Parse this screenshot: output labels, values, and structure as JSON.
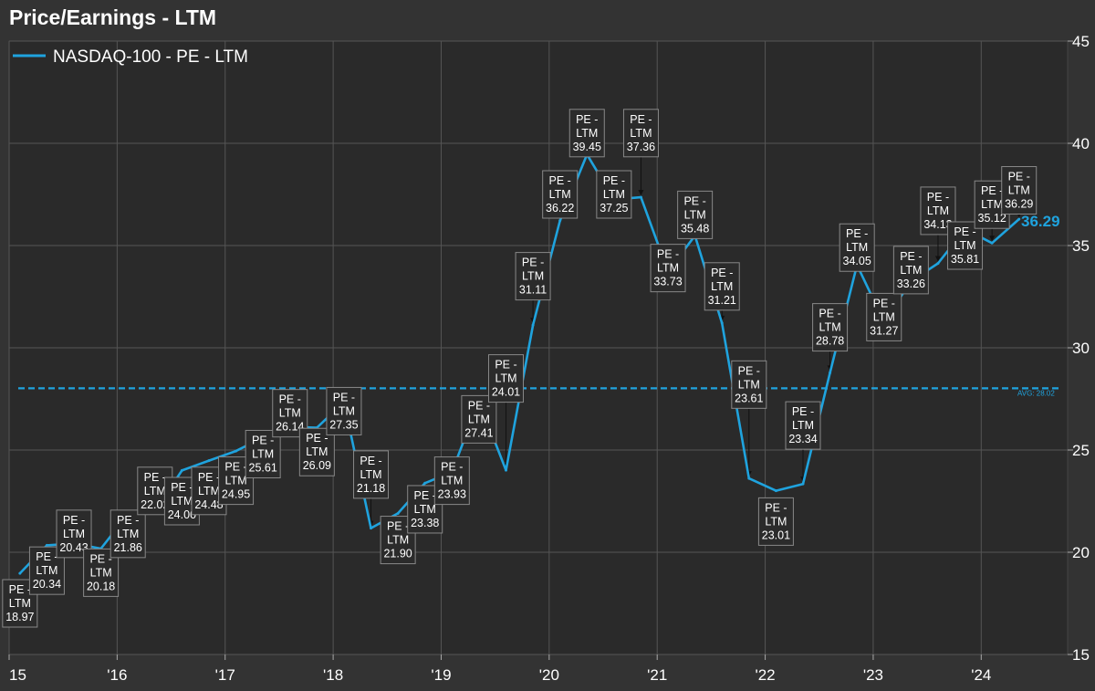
{
  "title": "Price/Earnings - LTM",
  "colors": {
    "background": "#333333",
    "plot": "#2a2a2a",
    "series": "#1fa3de",
    "grid": "#555555"
  },
  "chart_data": {
    "type": "line",
    "title": "Price/Earnings - LTM",
    "legend": {
      "position": "top-left"
    },
    "grid": true,
    "ylim": [
      15,
      45
    ],
    "y_ticks": [
      15,
      20,
      25,
      30,
      35,
      40,
      45
    ],
    "y_axis_side": "right",
    "x_ticks": [
      {
        "label": "15",
        "x": 2015.0
      },
      {
        "label": "'16",
        "x": 2016.0
      },
      {
        "label": "'17",
        "x": 2017.0
      },
      {
        "label": "'18",
        "x": 2018.0
      },
      {
        "label": "'19",
        "x": 2019.0
      },
      {
        "label": "'20",
        "x": 2020.0
      },
      {
        "label": "'21",
        "x": 2021.0
      },
      {
        "label": "'22",
        "x": 2022.0
      },
      {
        "label": "'23",
        "x": 2023.0
      },
      {
        "label": "'24",
        "x": 2024.0
      }
    ],
    "xlim": [
      2015.0,
      2024.8
    ],
    "series": [
      {
        "name": "NASDAQ-100 - PE - LTM",
        "label_prefix": "PE -",
        "label_mid": "LTM",
        "x": [
          2015.1,
          2015.35,
          2015.6,
          2015.85,
          2016.1,
          2016.35,
          2016.6,
          2016.85,
          2017.1,
          2017.35,
          2017.6,
          2017.85,
          2018.1,
          2018.35,
          2018.6,
          2018.85,
          2019.1,
          2019.35,
          2019.6,
          2019.85,
          2020.1,
          2020.35,
          2020.6,
          2020.85,
          2021.1,
          2021.35,
          2021.6,
          2021.85,
          2022.1,
          2022.35,
          2022.6,
          2022.85,
          2023.1,
          2023.35,
          2023.6,
          2023.85,
          2024.1,
          2024.35
        ],
        "y": [
          18.97,
          20.34,
          20.43,
          20.18,
          21.86,
          22.02,
          24.0,
          24.48,
          24.95,
          25.61,
          26.14,
          26.09,
          27.35,
          21.18,
          21.9,
          23.38,
          23.93,
          27.41,
          24.01,
          31.11,
          36.22,
          39.45,
          37.25,
          37.36,
          33.73,
          35.48,
          31.21,
          23.61,
          23.01,
          23.34,
          28.78,
          34.05,
          31.27,
          33.26,
          34.13,
          35.81,
          35.12,
          36.29
        ],
        "labels": [
          "18.97",
          "20.34",
          "20.43",
          "20.18",
          "21.86",
          "22.02",
          "24.00",
          "24.48",
          "24.95",
          "25.61",
          "26.14",
          "26.09",
          "27.35",
          "21.18",
          "21.90",
          "23.38",
          "23.93",
          "27.41",
          "24.01",
          "31.11",
          "36.22",
          "39.45",
          "37.25",
          "37.36",
          "33.73",
          "35.48",
          "31.21",
          "23.61",
          "23.01",
          "23.34",
          "28.78",
          "34.05",
          "31.27",
          "33.26",
          "34.13",
          "35.81",
          "35.12",
          "36.29"
        ],
        "label_y": [
          17.5,
          19.1,
          20.9,
          19.0,
          20.9,
          23.0,
          22.5,
          23.0,
          23.5,
          24.8,
          26.8,
          24.9,
          26.9,
          23.8,
          20.6,
          22.1,
          23.5,
          26.5,
          28.5,
          33.5,
          37.5,
          40.5,
          37.5,
          40.5,
          33.9,
          36.5,
          33.0,
          28.2,
          21.5,
          26.2,
          31.0,
          34.9,
          31.5,
          33.8,
          36.7,
          35.0,
          37.0,
          37.7
        ]
      }
    ],
    "average": {
      "value": 28.02,
      "label": "AVG: 28.02"
    },
    "last_value": "36.29"
  }
}
